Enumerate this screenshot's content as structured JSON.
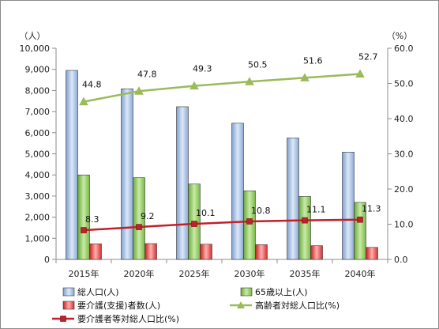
{
  "chart_data": {
    "type": "bar",
    "categories": [
      "2015年",
      "2020年",
      "2025年",
      "2030年",
      "2035年",
      "2040年"
    ],
    "left_axis": {
      "unit_label": "（人）",
      "ylim": [
        0,
        10000
      ],
      "ticks": [
        0,
        1000,
        2000,
        3000,
        4000,
        5000,
        6000,
        7000,
        8000,
        9000,
        10000
      ],
      "tick_labels": [
        "0",
        "1,000",
        "2,000",
        "3,000",
        "4,000",
        "5,000",
        "6,000",
        "7,000",
        "8,000",
        "9,000",
        "10,000"
      ]
    },
    "right_axis": {
      "unit_label": "（%）",
      "ylim": [
        0,
        60
      ],
      "ticks": [
        0,
        10,
        20,
        30,
        40,
        50,
        60
      ],
      "tick_labels": [
        "0.0",
        "10.0",
        "20.0",
        "30.0",
        "40.0",
        "50.0",
        "60.0"
      ]
    },
    "series": [
      {
        "name": "総人口(人)",
        "kind": "bar",
        "axis": "left",
        "color": "#9ab8e0",
        "values": [
          8950,
          8080,
          7230,
          6450,
          5750,
          5080
        ]
      },
      {
        "name": "65歳以上(人)",
        "kind": "bar",
        "axis": "left",
        "color": "#8cc65a",
        "values": [
          4000,
          3870,
          3570,
          3250,
          2980,
          2700
        ]
      },
      {
        "name": "要介護(支援)者数(人)",
        "kind": "bar",
        "axis": "left",
        "color": "#e04040",
        "values": [
          740,
          750,
          720,
          700,
          650,
          570
        ]
      },
      {
        "name": "高齢者対総人口比(%)",
        "kind": "line",
        "marker": "triangle",
        "axis": "right",
        "color": "#9bbb59",
        "values": [
          44.8,
          47.8,
          49.3,
          50.5,
          51.6,
          52.7
        ],
        "labels": [
          "44.8",
          "47.8",
          "49.3",
          "50.5",
          "51.6",
          "52.7"
        ]
      },
      {
        "name": "要介護者等対総人口比(%)",
        "kind": "line",
        "marker": "square",
        "axis": "right",
        "color": "#c0202a",
        "values": [
          8.3,
          9.2,
          10.1,
          10.8,
          11.1,
          11.3
        ],
        "labels": [
          "8.3",
          "9.2",
          "10.1",
          "10.8",
          "11.1",
          "11.3"
        ]
      }
    ],
    "grid": false,
    "legend_position": "bottom"
  }
}
